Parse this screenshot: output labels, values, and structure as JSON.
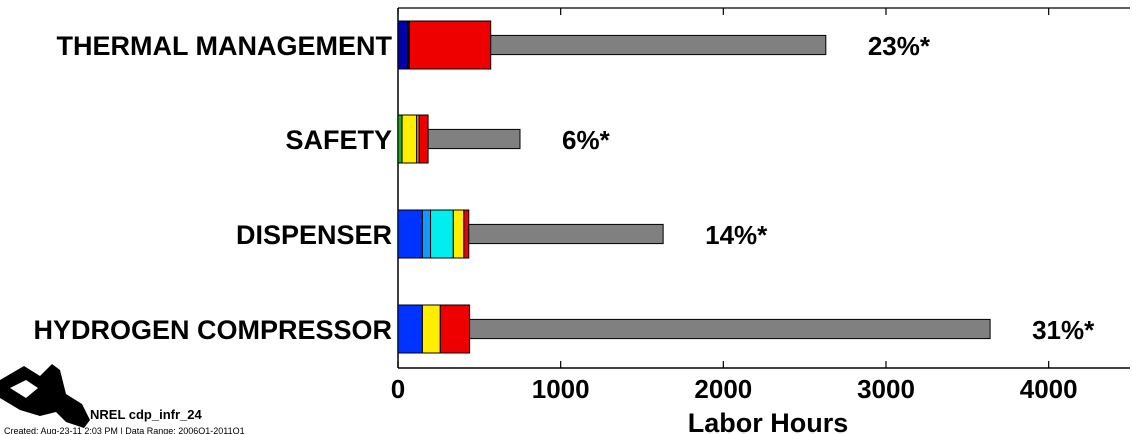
{
  "chart_data": {
    "type": "bar",
    "orientation": "horizontal",
    "stacked": true,
    "xlabel": "Labor Hours",
    "xlim": [
      0,
      4500
    ],
    "xticks": [
      0,
      1000,
      2000,
      3000,
      4000
    ],
    "categories": [
      "THERMAL MANAGEMENT",
      "SAFETY",
      "DISPENSER",
      "HYDROGEN COMPRESSOR"
    ],
    "percent_labels": [
      "23%*",
      "6%*",
      "14%*",
      "31%*"
    ],
    "bars": [
      {
        "category": "THERMAL MANAGEMENT",
        "segments": [
          {
            "color": "#0000aa",
            "value": 60
          },
          {
            "color": "#000000",
            "value": 10
          },
          {
            "color": "#ee0000",
            "value": 500
          },
          {
            "color": "#808080",
            "value": 2060
          }
        ]
      },
      {
        "category": "SAFETY",
        "segments": [
          {
            "color": "#22aa22",
            "value": 25
          },
          {
            "color": "#ffee00",
            "value": 90
          },
          {
            "color": "#ff9900",
            "value": 15
          },
          {
            "color": "#ee0000",
            "value": 55
          },
          {
            "color": "#808080",
            "value": 565
          }
        ]
      },
      {
        "category": "DISPENSER",
        "segments": [
          {
            "color": "#0033ff",
            "value": 150
          },
          {
            "color": "#1199ff",
            "value": 50
          },
          {
            "color": "#00eeee",
            "value": 140
          },
          {
            "color": "#ffee00",
            "value": 65
          },
          {
            "color": "#ee0000",
            "value": 30
          },
          {
            "color": "#808080",
            "value": 1195
          }
        ]
      },
      {
        "category": "HYDROGEN COMPRESSOR",
        "segments": [
          {
            "color": "#0033ff",
            "value": 150
          },
          {
            "color": "#ffee00",
            "value": 110
          },
          {
            "color": "#ee0000",
            "value": 180
          },
          {
            "color": "#808080",
            "value": 3200
          }
        ]
      }
    ]
  },
  "footer": {
    "id_label": "NREL cdp_infr_24",
    "created_label": "Created: Aug-23-11 2:03 PM | Data Range: 2006Q1-2011Q1"
  }
}
